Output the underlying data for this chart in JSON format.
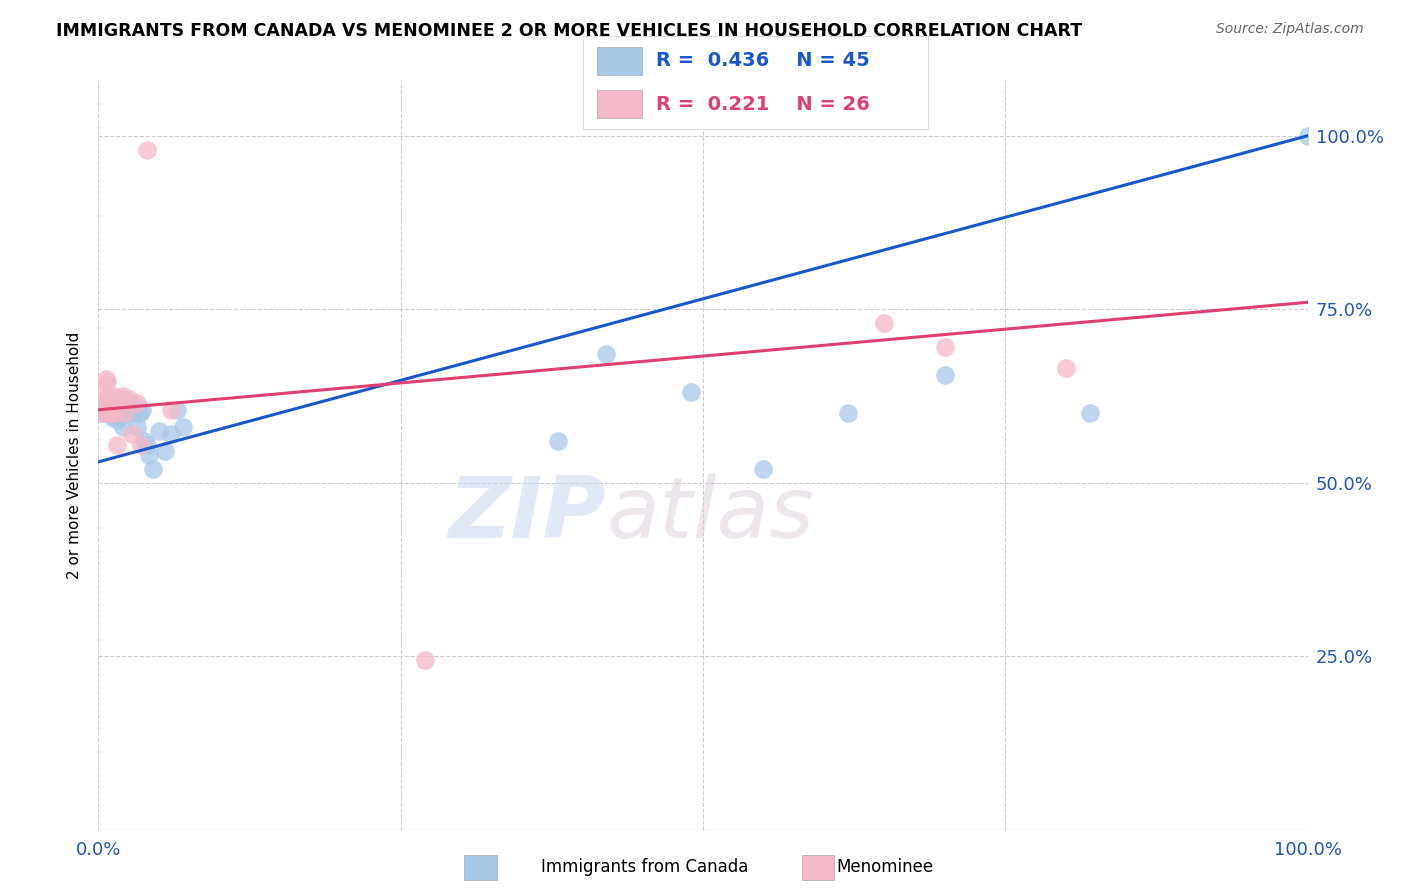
{
  "title": "IMMIGRANTS FROM CANADA VS MENOMINEE 2 OR MORE VEHICLES IN HOUSEHOLD CORRELATION CHART",
  "source": "Source: ZipAtlas.com",
  "ylabel": "2 or more Vehicles in Household",
  "legend_label1": "Immigrants from Canada",
  "legend_label2": "Menominee",
  "R1": 0.436,
  "N1": 45,
  "R2": 0.221,
  "N2": 26,
  "color_blue": "#a8c8e8",
  "color_pink": "#f4b8c8",
  "color_blue_line": "#1a56cc",
  "color_pink_line": "#e04070",
  "blue_x": [
    0.002,
    0.004,
    0.006,
    0.007,
    0.008,
    0.009,
    0.01,
    0.011,
    0.012,
    0.013,
    0.013,
    0.014,
    0.015,
    0.016,
    0.017,
    0.018,
    0.019,
    0.02,
    0.021,
    0.022,
    0.023,
    0.025,
    0.027,
    0.028,
    0.03,
    0.032,
    0.034,
    0.036,
    0.038,
    0.04,
    0.042,
    0.045,
    0.05,
    0.055,
    0.06,
    0.065,
    0.07,
    0.38,
    0.42,
    0.49,
    0.55,
    0.62,
    0.7,
    0.82,
    1.0
  ],
  "blue_y": [
    0.6,
    0.605,
    0.61,
    0.605,
    0.615,
    0.6,
    0.61,
    0.595,
    0.6,
    0.615,
    0.6,
    0.605,
    0.59,
    0.6,
    0.605,
    0.595,
    0.61,
    0.58,
    0.605,
    0.61,
    0.6,
    0.615,
    0.605,
    0.6,
    0.61,
    0.58,
    0.6,
    0.605,
    0.56,
    0.555,
    0.54,
    0.52,
    0.575,
    0.545,
    0.57,
    0.605,
    0.58,
    0.56,
    0.685,
    0.63,
    0.52,
    0.6,
    0.655,
    0.6,
    1.0
  ],
  "pink_x": [
    0.002,
    0.003,
    0.005,
    0.006,
    0.007,
    0.008,
    0.009,
    0.01,
    0.011,
    0.013,
    0.014,
    0.015,
    0.017,
    0.018,
    0.02,
    0.022,
    0.025,
    0.028,
    0.032,
    0.035,
    0.04,
    0.06,
    0.27,
    0.65,
    0.7,
    0.8
  ],
  "pink_y": [
    0.63,
    0.6,
    0.615,
    0.65,
    0.645,
    0.625,
    0.6,
    0.615,
    0.6,
    0.625,
    0.6,
    0.555,
    0.615,
    0.62,
    0.625,
    0.6,
    0.62,
    0.57,
    0.615,
    0.555,
    0.98,
    0.605,
    0.245,
    0.73,
    0.695,
    0.665
  ],
  "blue_line_x0": 0.0,
  "blue_line_y0": 0.53,
  "blue_line_x1": 1.0,
  "blue_line_y1": 1.0,
  "pink_line_x0": 0.0,
  "pink_line_y0": 0.605,
  "pink_line_x1": 1.0,
  "pink_line_y1": 0.76,
  "watermark_zip": "ZIP",
  "watermark_atlas": "atlas",
  "figsize": [
    14.06,
    8.92
  ],
  "dpi": 100,
  "ylim_min": 0.0,
  "ylim_max": 1.08,
  "xlim_min": 0.0,
  "xlim_max": 1.0
}
